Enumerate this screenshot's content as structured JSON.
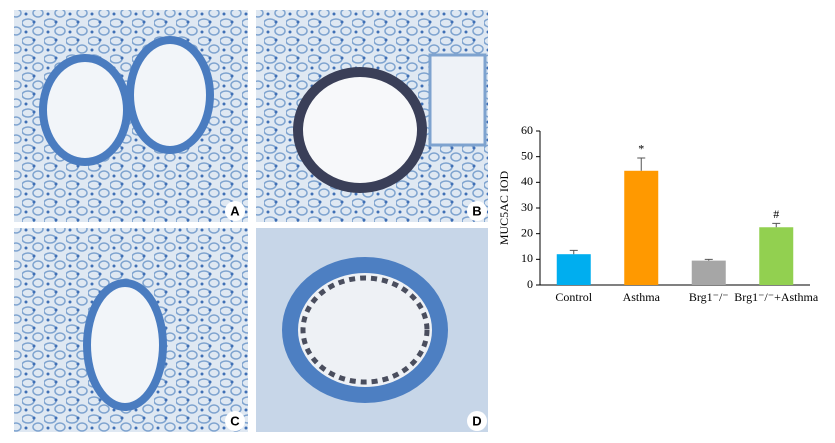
{
  "panels": [
    {
      "label": "A"
    },
    {
      "label": "B"
    },
    {
      "label": "C"
    },
    {
      "label": "D"
    }
  ],
  "chart_data": {
    "type": "bar",
    "y_label": "MUC5AC IOD",
    "categories": [
      "Control",
      "Asthma",
      "Brg1⁻/⁻",
      "Brg1⁻/⁻+Asthma"
    ],
    "series": [
      {
        "colors": [
          "#00aeef",
          "#ff9900",
          "#a6a6a6",
          "#92d050"
        ],
        "values": [
          12,
          44.5,
          9.5,
          22.5
        ],
        "errors": [
          1.5,
          5,
          0.5,
          1.5
        ],
        "annotations": [
          null,
          "*",
          null,
          "#"
        ]
      }
    ],
    "ylim": [
      0,
      60
    ],
    "yticks": [
      0,
      10,
      20,
      30,
      40,
      50,
      60
    ]
  }
}
